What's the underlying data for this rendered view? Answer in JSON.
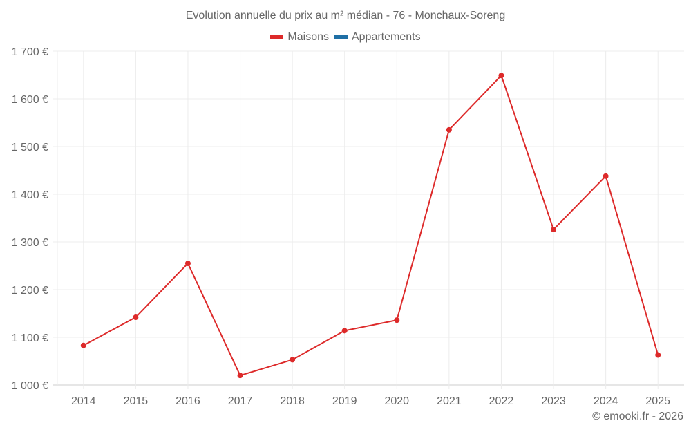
{
  "title": "Evolution annuelle du prix au m² médian - 76 - Monchaux-Soreng",
  "legend": [
    {
      "label": "Maisons",
      "color": "#dd2a2a"
    },
    {
      "label": "Appartements",
      "color": "#1f6fa5"
    }
  ],
  "footer": "© emooki.fr - 2026",
  "chart_data": {
    "type": "line",
    "title": "Evolution annuelle du prix au m² médian - 76 - Monchaux-Soreng",
    "xlabel": "",
    "ylabel": "",
    "categories": [
      "2014",
      "2015",
      "2016",
      "2017",
      "2018",
      "2019",
      "2020",
      "2021",
      "2022",
      "2023",
      "2024",
      "2025"
    ],
    "series": [
      {
        "name": "Maisons",
        "color": "#dd2a2a",
        "values": [
          1083,
          1142,
          1255,
          1020,
          1053,
          1114,
          1136,
          1535,
          1649,
          1326,
          1438,
          1063
        ]
      },
      {
        "name": "Appartements",
        "color": "#1f6fa5",
        "values": []
      }
    ],
    "ylim": [
      1000,
      1700
    ],
    "yticks": [
      1000,
      1100,
      1200,
      1300,
      1400,
      1500,
      1600,
      1700
    ],
    "ytick_labels": [
      "1 000 €",
      "1 100 €",
      "1 200 €",
      "1 300 €",
      "1 400 €",
      "1 500 €",
      "1 600 €",
      "1 700 €"
    ],
    "grid": true,
    "legend_position": "top"
  }
}
